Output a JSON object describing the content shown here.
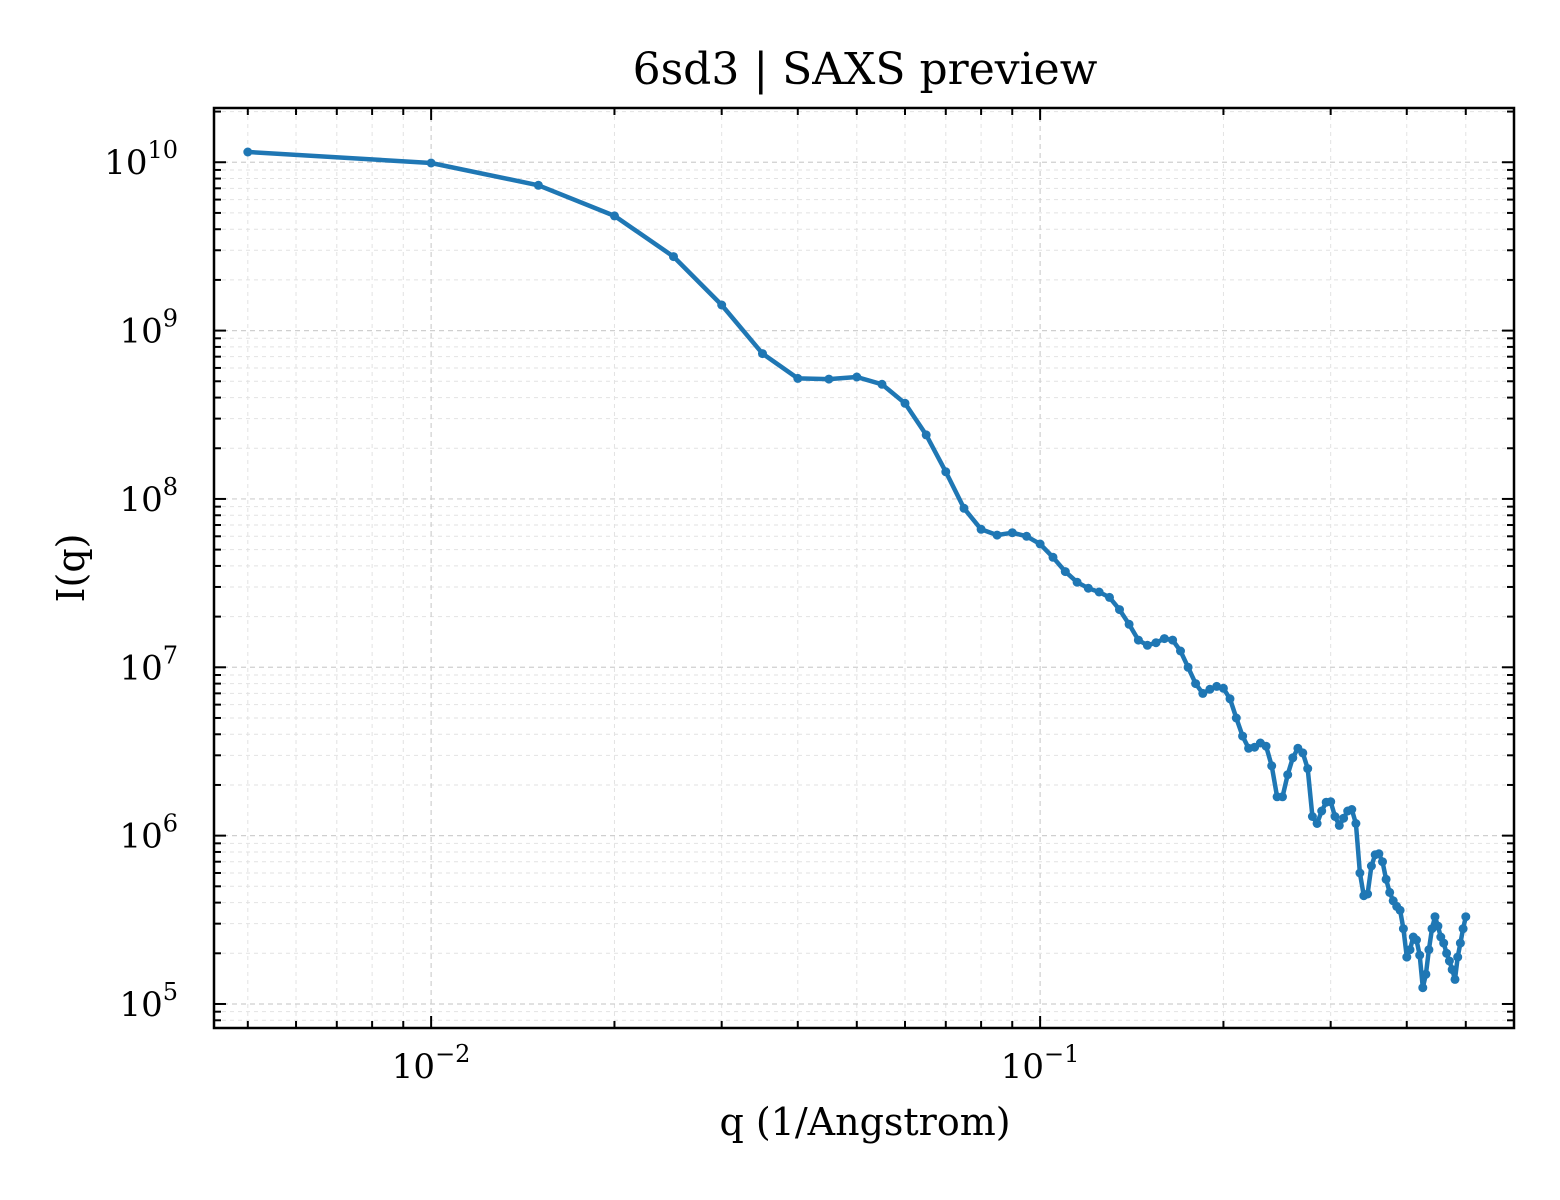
{
  "chart_data": {
    "type": "line",
    "title": "6sd3 | SAXS preview",
    "xlabel": "q (1/Angstrom)",
    "ylabel": "I(q)",
    "xscale": "log",
    "yscale": "log",
    "xlim": [
      0.0044,
      0.6
    ],
    "ylim": [
      72000,
      21000000000
    ],
    "grid": "on",
    "x_ticks": [
      {
        "base": "10",
        "exp": "−2",
        "value": 0.01
      },
      {
        "base": "10",
        "exp": "−1",
        "value": 0.1
      }
    ],
    "y_ticks": [
      {
        "base": "10",
        "exp": "5",
        "value": 100000
      },
      {
        "base": "10",
        "exp": "6",
        "value": 1000000
      },
      {
        "base": "10",
        "exp": "7",
        "value": 10000000
      },
      {
        "base": "10",
        "exp": "8",
        "value": 100000000
      },
      {
        "base": "10",
        "exp": "9",
        "value": 1000000000
      },
      {
        "base": "10",
        "exp": "10",
        "value": 10000000000
      }
    ],
    "color": "#1f77b4",
    "series": [
      {
        "x": [
          0.005,
          0.01,
          0.015,
          0.02,
          0.025,
          0.03,
          0.035,
          0.04,
          0.045,
          0.05,
          0.055,
          0.06,
          0.065,
          0.07,
          0.075,
          0.08,
          0.085,
          0.09,
          0.095,
          0.1,
          0.105,
          0.11,
          0.115,
          0.12,
          0.125,
          0.13,
          0.135,
          0.14,
          0.145,
          0.15,
          0.155,
          0.16,
          0.165,
          0.17,
          0.175,
          0.18,
          0.185,
          0.19,
          0.195,
          0.2,
          0.205,
          0.21,
          0.215,
          0.22,
          0.225,
          0.23,
          0.235,
          0.24,
          0.245,
          0.25,
          0.255,
          0.26,
          0.265,
          0.27,
          0.275,
          0.28,
          0.285,
          0.29,
          0.295,
          0.3,
          0.305,
          0.31,
          0.315,
          0.32,
          0.325,
          0.33,
          0.335,
          0.34,
          0.345,
          0.35,
          0.355,
          0.36,
          0.365,
          0.37,
          0.375,
          0.38,
          0.385,
          0.39,
          0.395,
          0.4,
          0.405,
          0.41,
          0.415,
          0.42,
          0.425,
          0.43,
          0.435,
          0.44,
          0.445,
          0.45,
          0.455,
          0.46,
          0.465,
          0.47,
          0.475,
          0.48,
          0.485,
          0.49,
          0.495,
          0.5
        ],
        "y": [
          11500000000,
          9900000000,
          7300000000,
          4800000000,
          2750000000,
          1420000000,
          730000000,
          520000000,
          515000000,
          530000000,
          480000000,
          370000000,
          240000000,
          145000000,
          88000000,
          66000000,
          61000000,
          63000000,
          60000000,
          54000000,
          45000000,
          37000000,
          32000000,
          29500000,
          28000000,
          26000000,
          22000000,
          18000000,
          14500000,
          13500000,
          14000000,
          14800000,
          14500000,
          12500000,
          10000000,
          8000000,
          7000000,
          7400000,
          7700000,
          7500000,
          6500000,
          5000000,
          3900000,
          3300000,
          3350000,
          3550000,
          3400000,
          2600000,
          1700000,
          1700000,
          2300000,
          2900000,
          3300000,
          3100000,
          2500000,
          1300000,
          1180000,
          1400000,
          1580000,
          1590000,
          1300000,
          1150000,
          1270000,
          1400000,
          1430000,
          1180000,
          600000,
          440000,
          450000,
          660000,
          770000,
          780000,
          700000,
          550000,
          460000,
          410000,
          380000,
          360000,
          280000,
          190000,
          210000,
          250000,
          240000,
          195000,
          125000,
          150000,
          210000,
          280000,
          330000,
          290000,
          250000,
          230000,
          200000,
          180000,
          160000,
          140000,
          190000,
          230000,
          280000,
          330000
        ]
      }
    ]
  }
}
